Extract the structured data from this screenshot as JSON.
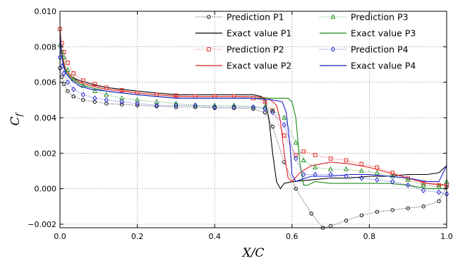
{
  "chart_data": {
    "type": "line",
    "title": "",
    "xlabel": "X/C",
    "ylabel": "C_f",
    "xlim": [
      0.0,
      1.0
    ],
    "ylim": [
      -0.0022,
      0.01
    ],
    "xticks": [
      0.0,
      0.2,
      0.4,
      0.6,
      0.8,
      1.0
    ],
    "xtick_labels": [
      "0.0",
      "0.2",
      "0.4",
      "0.6",
      "0.8",
      "1.0"
    ],
    "yticks": [
      -0.002,
      0.0,
      0.002,
      0.004,
      0.006,
      0.008,
      0.01
    ],
    "ytick_labels": [
      "−0.002",
      "0.000",
      "0.002",
      "0.004",
      "0.006",
      "0.008",
      "0.010"
    ],
    "grid": true,
    "legend_position": "top-right",
    "series": [
      {
        "name": "Prediction P1",
        "kind": "prediction",
        "color": "#000000",
        "marker": "circle",
        "x": [
          0.0,
          0.005,
          0.01,
          0.02,
          0.035,
          0.06,
          0.09,
          0.12,
          0.16,
          0.2,
          0.25,
          0.3,
          0.35,
          0.4,
          0.45,
          0.5,
          0.53,
          0.55,
          0.58,
          0.61,
          0.65,
          0.68,
          0.7,
          0.74,
          0.78,
          0.82,
          0.86,
          0.9,
          0.94,
          0.98,
          1.0
        ],
        "y": [
          0.0068,
          0.0063,
          0.0059,
          0.0055,
          0.0052,
          0.005,
          0.0049,
          0.0048,
          0.00475,
          0.0047,
          0.00465,
          0.0046,
          0.0046,
          0.00455,
          0.00455,
          0.0045,
          0.0043,
          0.0035,
          0.0015,
          0.0,
          -0.0014,
          -0.0022,
          -0.0021,
          -0.0018,
          -0.0015,
          -0.0013,
          -0.0012,
          -0.0011,
          -0.001,
          -0.0007,
          0.0001
        ]
      },
      {
        "name": "Exact value P1",
        "kind": "exact",
        "color": "#000000",
        "x": [
          0.0,
          0.003,
          0.008,
          0.015,
          0.03,
          0.05,
          0.08,
          0.12,
          0.16,
          0.2,
          0.25,
          0.3,
          0.35,
          0.4,
          0.45,
          0.5,
          0.52,
          0.53,
          0.54,
          0.55,
          0.56,
          0.57,
          0.58,
          0.6,
          0.65,
          0.7,
          0.75,
          0.8,
          0.85,
          0.9,
          0.95,
          0.98,
          1.0
        ],
        "y": [
          0.0092,
          0.008,
          0.0072,
          0.0067,
          0.0063,
          0.0061,
          0.0059,
          0.0057,
          0.0056,
          0.0055,
          0.0054,
          0.0053,
          0.0053,
          0.0053,
          0.0053,
          0.0053,
          0.0052,
          0.005,
          0.004,
          0.002,
          0.0004,
          0.0,
          0.0003,
          0.0004,
          0.0005,
          0.0006,
          0.0006,
          0.0007,
          0.0007,
          0.0008,
          0.0008,
          0.0009,
          0.0013
        ]
      },
      {
        "name": "Prediction P2",
        "kind": "prediction",
        "color": "#e02020",
        "marker": "square",
        "x": [
          0.0,
          0.005,
          0.01,
          0.02,
          0.035,
          0.06,
          0.09,
          0.12,
          0.16,
          0.2,
          0.25,
          0.3,
          0.35,
          0.4,
          0.45,
          0.5,
          0.53,
          0.55,
          0.58,
          0.61,
          0.63,
          0.66,
          0.7,
          0.74,
          0.78,
          0.82,
          0.86,
          0.9,
          0.94,
          0.98,
          1.0
        ],
        "y": [
          0.009,
          0.0082,
          0.0077,
          0.0071,
          0.0065,
          0.0061,
          0.0059,
          0.0057,
          0.00555,
          0.0054,
          0.0053,
          0.00525,
          0.0052,
          0.0052,
          0.0052,
          0.0051,
          0.0049,
          0.0044,
          0.003,
          0.0019,
          0.0021,
          0.0019,
          0.0017,
          0.0016,
          0.0014,
          0.0012,
          0.0009,
          0.0006,
          0.0003,
          0.0002,
          0.0002
        ]
      },
      {
        "name": "Exact value P2",
        "kind": "exact",
        "color": "#e02020",
        "x": [
          0.0,
          0.003,
          0.008,
          0.015,
          0.03,
          0.05,
          0.08,
          0.12,
          0.16,
          0.2,
          0.25,
          0.3,
          0.35,
          0.4,
          0.45,
          0.5,
          0.54,
          0.56,
          0.57,
          0.58,
          0.59,
          0.6,
          0.62,
          0.65,
          0.7,
          0.75,
          0.8,
          0.85,
          0.9,
          0.95,
          1.0
        ],
        "y": [
          0.0091,
          0.008,
          0.0073,
          0.0067,
          0.0063,
          0.006,
          0.0058,
          0.0056,
          0.0055,
          0.0054,
          0.0053,
          0.0052,
          0.0052,
          0.0052,
          0.0052,
          0.0052,
          0.0051,
          0.0047,
          0.0038,
          0.002,
          0.0006,
          0.0004,
          0.0009,
          0.0013,
          0.0015,
          0.0014,
          0.0012,
          0.0009,
          0.0006,
          0.0003,
          0.0002
        ]
      },
      {
        "name": "Prediction P3",
        "kind": "prediction",
        "color": "#1a8a1a",
        "marker": "triangle",
        "x": [
          0.0,
          0.005,
          0.01,
          0.02,
          0.035,
          0.06,
          0.09,
          0.12,
          0.16,
          0.2,
          0.25,
          0.3,
          0.35,
          0.4,
          0.45,
          0.5,
          0.53,
          0.55,
          0.58,
          0.61,
          0.63,
          0.66,
          0.7,
          0.74,
          0.78,
          0.82,
          0.86,
          0.9,
          0.94,
          0.98,
          1.0
        ],
        "y": [
          0.0081,
          0.0077,
          0.0074,
          0.0067,
          0.0062,
          0.0058,
          0.0055,
          0.0053,
          0.0051,
          0.005,
          0.0049,
          0.0048,
          0.0047,
          0.0047,
          0.0047,
          0.0046,
          0.0046,
          0.0044,
          0.004,
          0.0026,
          0.0016,
          0.0012,
          0.0011,
          0.0011,
          0.001,
          0.0009,
          0.0007,
          0.0005,
          0.0002,
          0.0001,
          0.0004
        ]
      },
      {
        "name": "Exact value P3",
        "kind": "exact",
        "color": "#1a8a1a",
        "x": [
          0.0,
          0.003,
          0.008,
          0.015,
          0.03,
          0.05,
          0.08,
          0.12,
          0.16,
          0.2,
          0.25,
          0.3,
          0.35,
          0.4,
          0.45,
          0.5,
          0.55,
          0.59,
          0.6,
          0.61,
          0.62,
          0.63,
          0.64,
          0.66,
          0.7,
          0.75,
          0.8,
          0.85,
          0.9,
          0.95,
          1.0
        ],
        "y": [
          0.0089,
          0.0078,
          0.0071,
          0.0066,
          0.0062,
          0.0059,
          0.0057,
          0.0055,
          0.0054,
          0.0053,
          0.0052,
          0.0051,
          0.0051,
          0.0051,
          0.0051,
          0.0051,
          0.0051,
          0.0051,
          0.0049,
          0.004,
          0.0015,
          0.0002,
          0.0002,
          0.0004,
          0.0003,
          0.0003,
          0.0003,
          0.0003,
          0.0002,
          0.0,
          0.0
        ]
      },
      {
        "name": "Prediction P4",
        "kind": "prediction",
        "color": "#1c1ccc",
        "marker": "diamond",
        "x": [
          0.0,
          0.005,
          0.01,
          0.02,
          0.035,
          0.06,
          0.09,
          0.12,
          0.16,
          0.2,
          0.25,
          0.3,
          0.35,
          0.4,
          0.45,
          0.5,
          0.53,
          0.55,
          0.58,
          0.61,
          0.63,
          0.66,
          0.7,
          0.74,
          0.78,
          0.82,
          0.86,
          0.9,
          0.94,
          0.98,
          1.0
        ],
        "y": [
          0.0074,
          0.0069,
          0.0065,
          0.006,
          0.0056,
          0.0053,
          0.0051,
          0.005,
          0.0049,
          0.0048,
          0.0047,
          0.0047,
          0.0047,
          0.0046,
          0.0046,
          0.0046,
          0.0045,
          0.0043,
          0.0036,
          0.0017,
          0.0008,
          0.0008,
          0.0008,
          0.0007,
          0.0006,
          0.0005,
          0.0004,
          0.0002,
          -0.0001,
          -0.0002,
          -0.0003
        ]
      },
      {
        "name": "Exact value P4",
        "kind": "exact",
        "color": "#1c1ccc",
        "x": [
          0.0,
          0.003,
          0.008,
          0.015,
          0.03,
          0.05,
          0.08,
          0.12,
          0.16,
          0.2,
          0.25,
          0.3,
          0.35,
          0.4,
          0.45,
          0.5,
          0.55,
          0.575,
          0.585,
          0.595,
          0.6,
          0.61,
          0.62,
          0.65,
          0.7,
          0.75,
          0.8,
          0.85,
          0.9,
          0.95,
          0.98,
          1.0
        ],
        "y": [
          0.0087,
          0.0077,
          0.007,
          0.0065,
          0.0061,
          0.0058,
          0.0056,
          0.0055,
          0.0054,
          0.0053,
          0.0052,
          0.0051,
          0.0051,
          0.0051,
          0.0051,
          0.0051,
          0.005,
          0.0049,
          0.0043,
          0.0024,
          0.0008,
          0.0004,
          0.0005,
          0.0007,
          0.0007,
          0.0008,
          0.0008,
          0.0007,
          0.0006,
          0.0004,
          0.0004,
          0.0013
        ]
      }
    ]
  }
}
